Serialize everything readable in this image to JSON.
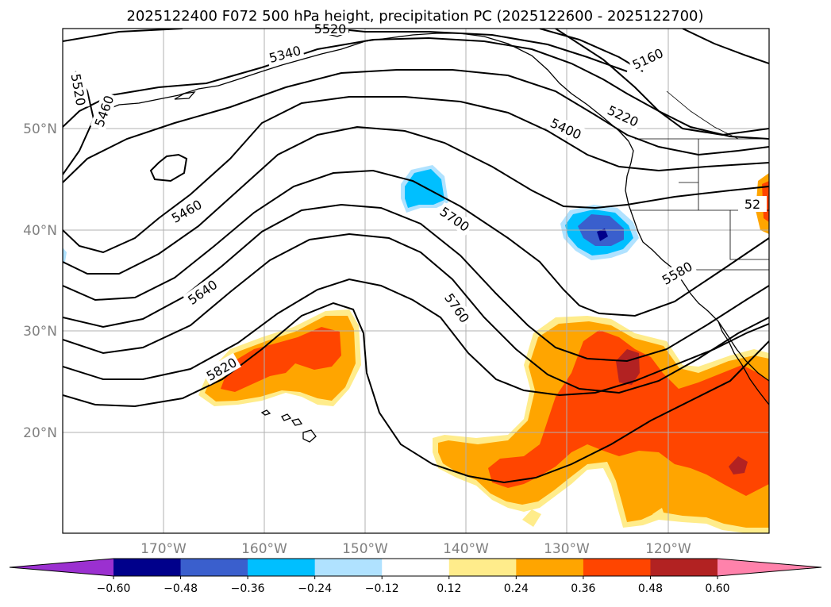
{
  "title": "2025122400 F072 500 hPa height, precipitation PC (2025122600 - 2025122700)",
  "lat_ticks": [
    "50°N",
    "40°N",
    "30°N",
    "20°N"
  ],
  "lon_ticks": [
    "170°W",
    "160°W",
    "150°W",
    "140°W",
    "130°W",
    "120°W"
  ],
  "colorbar": {
    "ticks": [
      "−0.60",
      "−0.48",
      "−0.36",
      "−0.24",
      "−0.12",
      "0.12",
      "0.24",
      "0.36",
      "0.48",
      "0.60"
    ],
    "colors": [
      "#9b30d0",
      "#00008b",
      "#3a5fcd",
      "#00bfff",
      "#b0e2ff",
      "#ffffff",
      "#ffec8b",
      "#ffa500",
      "#ff4500",
      "#b22222",
      "#ff82ab"
    ]
  },
  "contour_labels": [
    "5160",
    "5220",
    "5340",
    "5400",
    "5460",
    "5460",
    "5520",
    "5520",
    "5580",
    "5640",
    "5700",
    "5760",
    "5820",
    "52"
  ],
  "chart_data": {
    "type": "map",
    "variable": "500 hPa height, precipitation PC",
    "contour_levels_shown": [
      5160,
      5220,
      5340,
      5400,
      5460,
      5520,
      5580,
      5640,
      5700,
      5760,
      5820
    ],
    "colorbar_levels": [
      -0.6,
      -0.48,
      -0.36,
      -0.24,
      -0.12,
      0.12,
      0.24,
      0.36,
      0.48,
      0.6
    ],
    "colorbar_extend": "both",
    "lon_range": [
      -180,
      -110
    ],
    "lat_range": [
      10,
      60
    ],
    "grid": true
  }
}
